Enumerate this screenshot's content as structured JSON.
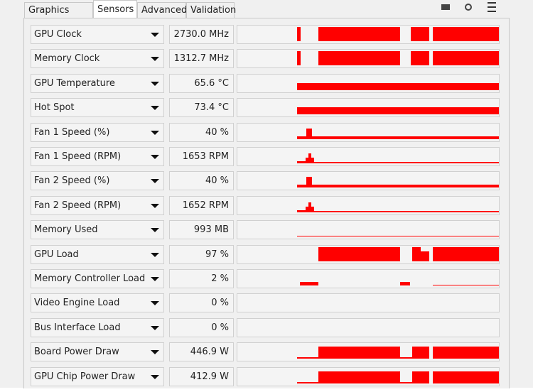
{
  "tabs": [
    "Graphics Card",
    "Sensors",
    "Advanced",
    "Validation"
  ],
  "sensors": [
    {
      "name": "GPU Clock",
      "value": "2730.0 MHz"
    },
    {
      "name": "Memory Clock",
      "value": "1312.7 MHz"
    },
    {
      "name": "GPU Temperature",
      "value": "65.6 °C"
    },
    {
      "name": "Hot Spot",
      "value": "73.4 °C"
    },
    {
      "name": "Fan 1 Speed (%)",
      "value": "40 %"
    },
    {
      "name": "Fan 1 Speed (RPM)",
      "value": "1653 RPM"
    },
    {
      "name": "Fan 2 Speed (%)",
      "value": "40 %"
    },
    {
      "name": "Fan 2 Speed (RPM)",
      "value": "1652 RPM"
    },
    {
      "name": "Memory Used",
      "value": "993 MB"
    },
    {
      "name": "GPU Load",
      "value": "97 %"
    },
    {
      "name": "Memory Controller Load",
      "value": "2 %"
    },
    {
      "name": "Video Engine Load",
      "value": "0 %"
    },
    {
      "name": "Bus Interface Load",
      "value": "0 %"
    },
    {
      "name": "Board Power Draw",
      "value": "446.9 W"
    },
    {
      "name": "GPU Chip Power Draw",
      "value": "412.9 W"
    }
  ]
}
